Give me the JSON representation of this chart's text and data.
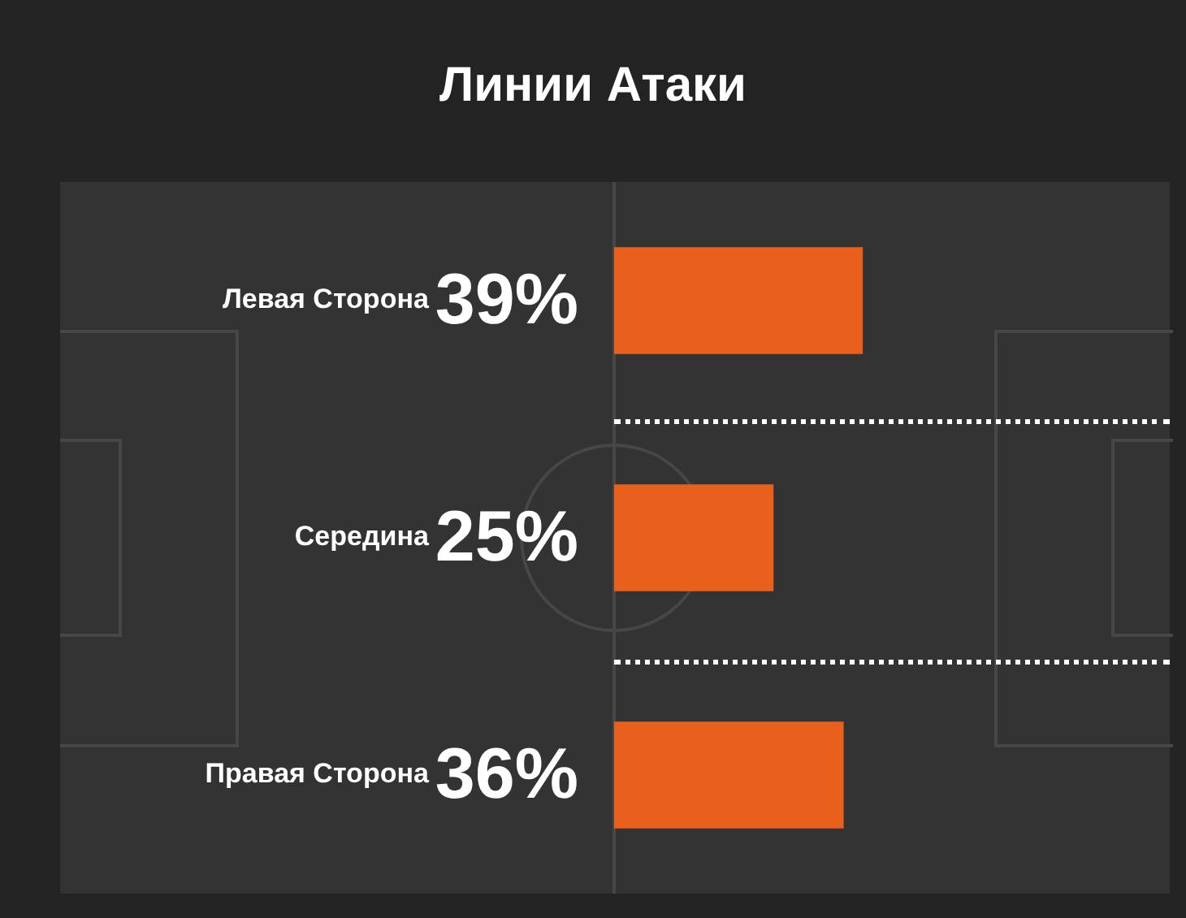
{
  "chart_data": {
    "type": "bar",
    "title": "Линии Атаки",
    "orientation": "horizontal",
    "categories": [
      "Левая Сторона",
      "Середина",
      "Правая Сторона"
    ],
    "values": [
      39,
      25,
      36
    ],
    "color": "#e8601c",
    "value_labels": [
      "39%",
      "25%",
      "36%"
    ],
    "tick_labels": false
  }
}
